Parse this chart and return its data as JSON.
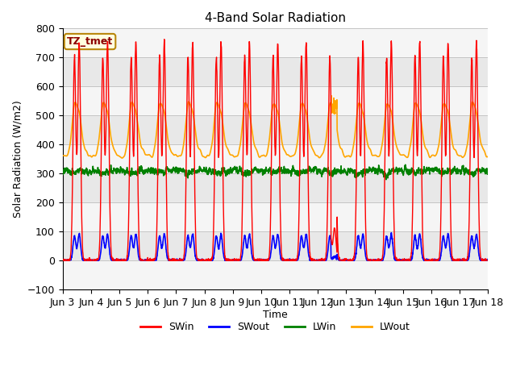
{
  "title": "4-Band Solar Radiation",
  "xlabel": "Time",
  "ylabel": "Solar Radiation (W/m2)",
  "ylim": [
    -100,
    800
  ],
  "legend_label": "TZ_tmet",
  "series_labels": [
    "SWin",
    "SWout",
    "LWin",
    "LWout"
  ],
  "series_colors": [
    "red",
    "blue",
    "green",
    "orange"
  ],
  "background_color": "#ffffff",
  "n_days": 15,
  "tick_labels": [
    "Jun 3",
    "Jun 4",
    "Jun 5",
    "Jun 6",
    "Jun 7",
    "Jun 8",
    "Jun 9",
    "Jun 10",
    "Jun 11",
    "Jun 12",
    "Jun 13",
    "Jun 14",
    "Jun 15",
    "Jun 16",
    "Jun 17",
    "Jun 18"
  ],
  "yticks": [
    -100,
    0,
    100,
    200,
    300,
    400,
    500,
    600,
    700,
    800
  ],
  "facecolor": "#e8e8e8"
}
